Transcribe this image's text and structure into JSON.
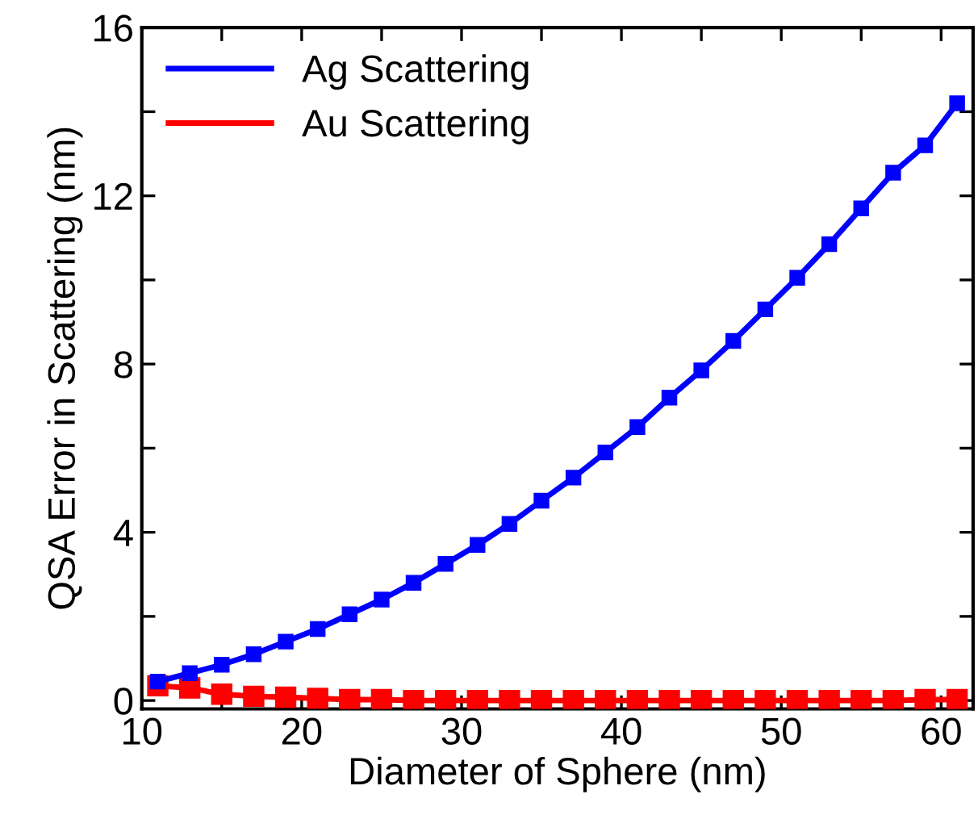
{
  "chart_data": {
    "type": "line",
    "xlabel": "Diameter of Sphere (nm)",
    "ylabel": "QSA Error in Scattering (nm)",
    "x": [
      11,
      13,
      15,
      17,
      19,
      21,
      23,
      25,
      27,
      29,
      31,
      33,
      35,
      37,
      39,
      41,
      43,
      45,
      47,
      49,
      51,
      53,
      55,
      57,
      59,
      61
    ],
    "series": [
      {
        "name": "Ag Scattering",
        "color": "#0000ff",
        "values": [
          0.45,
          0.65,
          0.85,
          1.1,
          1.4,
          1.7,
          2.05,
          2.4,
          2.8,
          3.25,
          3.7,
          4.2,
          4.75,
          5.3,
          5.9,
          6.5,
          7.2,
          7.85,
          8.55,
          9.3,
          10.05,
          10.85,
          11.7,
          12.55,
          13.2,
          14.2
        ]
      },
      {
        "name": "Au Scattering",
        "color": "#ff0000",
        "values": [
          0.35,
          0.3,
          0.15,
          0.1,
          0.08,
          0.05,
          0.02,
          0.02,
          0.0,
          0.0,
          0.0,
          0.0,
          0.0,
          0.0,
          0.0,
          0.0,
          0.0,
          0.0,
          0.0,
          0.0,
          0.0,
          0.0,
          0.0,
          0.0,
          0.02,
          0.02
        ]
      }
    ],
    "xlim": [
      10,
      62
    ],
    "ylim": [
      -0.2,
      16
    ],
    "xticks": [
      10,
      {
        "value": 15,
        "label": null
      },
      20,
      {
        "value": 25,
        "label": null
      },
      30,
      {
        "value": 35,
        "label": null
      },
      40,
      {
        "value": 45,
        "label": null
      },
      50,
      {
        "value": 55,
        "label": null
      },
      60
    ],
    "yticks": [
      0,
      {
        "value": 2,
        "label": null
      },
      4,
      {
        "value": 6,
        "label": null
      },
      8,
      {
        "value": 10,
        "label": null
      },
      12,
      {
        "value": 14,
        "label": null
      },
      16
    ],
    "marker": "square",
    "line_style": "solid",
    "legend": "top left",
    "grid": false
  }
}
